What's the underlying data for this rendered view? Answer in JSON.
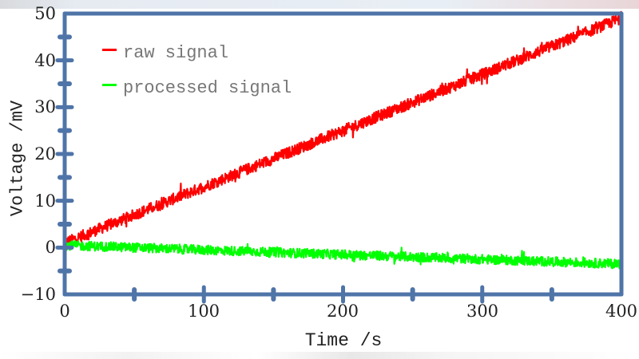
{
  "chart_data": {
    "type": "line",
    "title": "",
    "xlabel": "Time /s",
    "ylabel": "Voltage /mV",
    "xlim": [
      0,
      400
    ],
    "ylim": [
      -10,
      50
    ],
    "x_ticks": [
      "0",
      "100",
      "200",
      "300",
      "400"
    ],
    "y_ticks": [
      "50",
      "40",
      "30",
      "20",
      "10",
      "0",
      "−10"
    ],
    "grid": false,
    "legend_position": "upper left",
    "series": [
      {
        "name": "raw signal",
        "color": "#ff0000",
        "x": [
          0,
          50,
          100,
          150,
          200,
          250,
          300,
          350,
          400
        ],
        "values": [
          1.0,
          7.0,
          13.0,
          19.0,
          25.0,
          31.0,
          37.0,
          43.0,
          49.0
        ],
        "noise_amplitude": 1.2
      },
      {
        "name": "processed signal",
        "color": "#00ff00",
        "x": [
          0,
          50,
          100,
          150,
          200,
          250,
          300,
          350,
          400
        ],
        "values": [
          0.5,
          0.0,
          -0.5,
          -1.0,
          -1.5,
          -2.0,
          -2.5,
          -3.0,
          -3.5
        ],
        "noise_amplitude": 1.0
      }
    ]
  },
  "legend": {
    "items": [
      {
        "label": "raw signal",
        "color": "#ff0000"
      },
      {
        "label": "processed signal",
        "color": "#00ff00"
      }
    ]
  },
  "axes": {
    "color": "#4f74a8",
    "x_title": "Time /s",
    "y_title": "Voltage /mV",
    "x_tick_labels": [
      "0",
      "100",
      "200",
      "300",
      "400"
    ],
    "y_tick_labels": [
      "50",
      "40",
      "30",
      "20",
      "10",
      "0",
      "−10"
    ]
  }
}
